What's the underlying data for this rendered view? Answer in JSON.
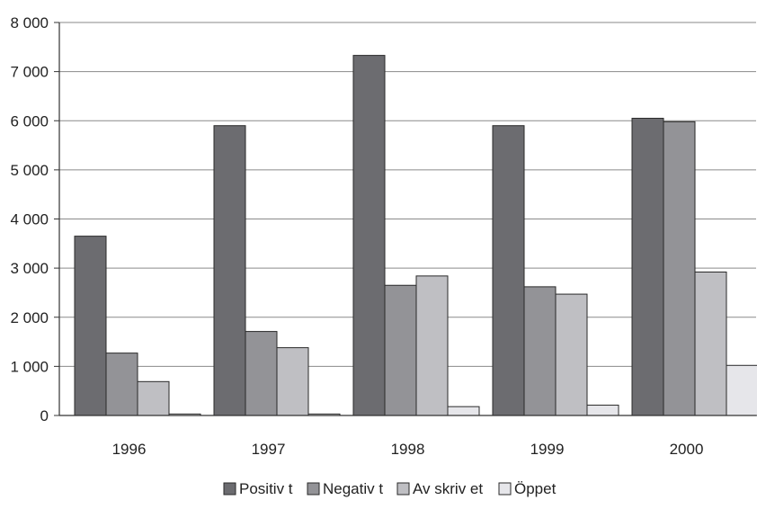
{
  "chart_data": {
    "type": "bar",
    "title": "",
    "xlabel": "",
    "ylabel": "",
    "categories": [
      "1996",
      "1997",
      "1998",
      "1999",
      "2000"
    ],
    "series": [
      {
        "name": "Positiv t",
        "color": "#6c6c70",
        "values": [
          3650,
          5900,
          7330,
          5900,
          6050
        ]
      },
      {
        "name": "Negativ t",
        "color": "#939397",
        "values": [
          1270,
          1710,
          2650,
          2620,
          5980
        ]
      },
      {
        "name": "Av skriv et",
        "color": "#bfbfc3",
        "values": [
          690,
          1380,
          2840,
          2470,
          2920
        ]
      },
      {
        "name": "Öppet",
        "color": "#e6e6ea",
        "values": [
          30,
          30,
          180,
          210,
          1020
        ]
      }
    ],
    "ylim": [
      0,
      8000
    ],
    "yticks": [
      0,
      1000,
      2000,
      3000,
      4000,
      5000,
      6000,
      7000,
      8000
    ],
    "ytick_labels": [
      "0",
      "1 000",
      "2 000",
      "3 000",
      "4 000",
      "5 000",
      "6 000",
      "7 000",
      "8 000"
    ],
    "grid": true,
    "legend_position": "bottom-center"
  }
}
